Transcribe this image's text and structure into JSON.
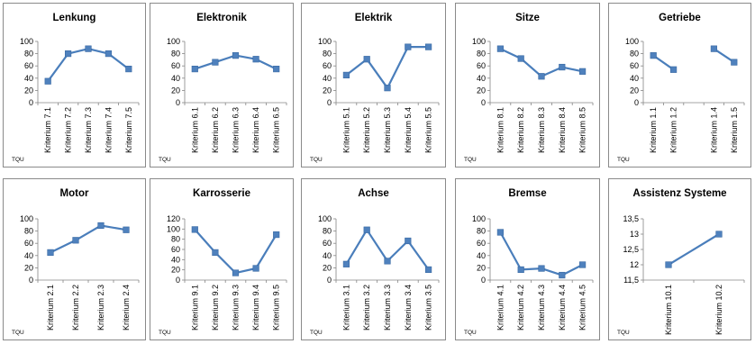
{
  "x_axis_title": "TQU",
  "style": {
    "series_color": "#4A7EBB",
    "marker_color": "#4F81BD",
    "axis_color": "#868686"
  },
  "chart_data": [
    {
      "type": "line",
      "title": "Lenkung",
      "categories": [
        "Kriterium 7.1",
        "Kriterium 7.2",
        "Kriterium 7.3",
        "Kriterium 7.4",
        "Kriterium 7.5"
      ],
      "values": [
        35,
        80,
        88,
        80,
        55
      ],
      "ylim": [
        0,
        100
      ],
      "yticks": [
        "0",
        "20",
        "40",
        "60",
        "80",
        "100"
      ],
      "legend": "none"
    },
    {
      "type": "line",
      "title": "Elektronik",
      "categories": [
        "Kriterium 6.1",
        "Kriterium 6.2",
        "Kriterium 6.3",
        "Kriterium 6.4",
        "Kriterium 6.5"
      ],
      "values": [
        55,
        66,
        77,
        71,
        55
      ],
      "ylim": [
        0,
        100
      ],
      "yticks": [
        "0",
        "20",
        "40",
        "60",
        "80",
        "100"
      ],
      "legend": "none"
    },
    {
      "type": "line",
      "title": "Elektrik",
      "categories": [
        "Kriterium 5.1",
        "Kriterium 5.2",
        "Kriterium 5.3",
        "Kriterium 5.4",
        "Kriterium 5.5"
      ],
      "values": [
        45,
        71,
        24,
        91,
        91
      ],
      "ylim": [
        0,
        100
      ],
      "yticks": [
        "0",
        "20",
        "40",
        "60",
        "80",
        "100"
      ],
      "legend": "none"
    },
    {
      "type": "line",
      "title": "Sitze",
      "categories": [
        "Kriterium 8.1",
        "Kriterium 8.2",
        "Kriterium 8.3",
        "Kriterium 8.4",
        "Kriterium 8.5"
      ],
      "values": [
        88,
        72,
        43,
        58,
        51
      ],
      "ylim": [
        0,
        100
      ],
      "yticks": [
        "0",
        "20",
        "40",
        "60",
        "80",
        "100"
      ],
      "legend": "none"
    },
    {
      "type": "line",
      "title": "Getriebe",
      "categories": [
        "Kriterium 1.1",
        "Kriterium 1.2",
        "",
        "Kriterium 1.4",
        "Kriterium 1.5"
      ],
      "values": [
        77,
        54,
        null,
        88,
        66
      ],
      "ylim": [
        0,
        100
      ],
      "yticks": [
        "0",
        "20",
        "40",
        "60",
        "80",
        "100"
      ],
      "legend": "none"
    },
    {
      "type": "line",
      "title": "Motor",
      "categories": [
        "Kriterium 2.1",
        "Kriterium 2.2",
        "Kriterium 2.3",
        "Kriterium 2.4"
      ],
      "values": [
        45,
        65,
        89,
        82
      ],
      "ylim": [
        0,
        100
      ],
      "yticks": [
        "0",
        "20",
        "40",
        "60",
        "80",
        "100"
      ],
      "legend": "none"
    },
    {
      "type": "line",
      "title": "Karrosserie",
      "categories": [
        "Kriterium 9.1",
        "Kriterium 9.2",
        "Kriterium 9.3",
        "Kriterium 9.4",
        "Kriterium 9.5"
      ],
      "values": [
        99,
        54,
        14,
        23,
        89
      ],
      "ylim": [
        0,
        120
      ],
      "yticks": [
        "0",
        "20",
        "40",
        "60",
        "80",
        "100",
        "120"
      ],
      "legend": "none"
    },
    {
      "type": "line",
      "title": "Achse",
      "categories": [
        "Kriterium 3.1",
        "Kriterium 3.2",
        "Kriterium 3.3",
        "Kriterium 3.4",
        "Kriterium 3.5"
      ],
      "values": [
        26,
        82,
        31,
        64,
        17
      ],
      "ylim": [
        0,
        100
      ],
      "yticks": [
        "0",
        "20",
        "40",
        "60",
        "80",
        "100"
      ],
      "legend": "none"
    },
    {
      "type": "line",
      "title": "Bremse",
      "categories": [
        "Kriterium 4.1",
        "Kriterium 4.2",
        "Kriterium 4.3",
        "Kriterium 4.4",
        "Kriterium 4.5"
      ],
      "values": [
        78,
        17,
        19,
        8,
        25
      ],
      "ylim": [
        0,
        100
      ],
      "yticks": [
        "0",
        "20",
        "40",
        "60",
        "80",
        "100"
      ],
      "legend": "none"
    },
    {
      "type": "line",
      "title": "Assistenz Systeme",
      "categories": [
        "Kriterium 10.1",
        "Kriterium 10.2"
      ],
      "values": [
        12,
        13
      ],
      "ylim": [
        11.5,
        13.5
      ],
      "yticks": [
        "11,5",
        "12",
        "12,5",
        "13",
        "13,5"
      ],
      "legend": "none"
    }
  ]
}
